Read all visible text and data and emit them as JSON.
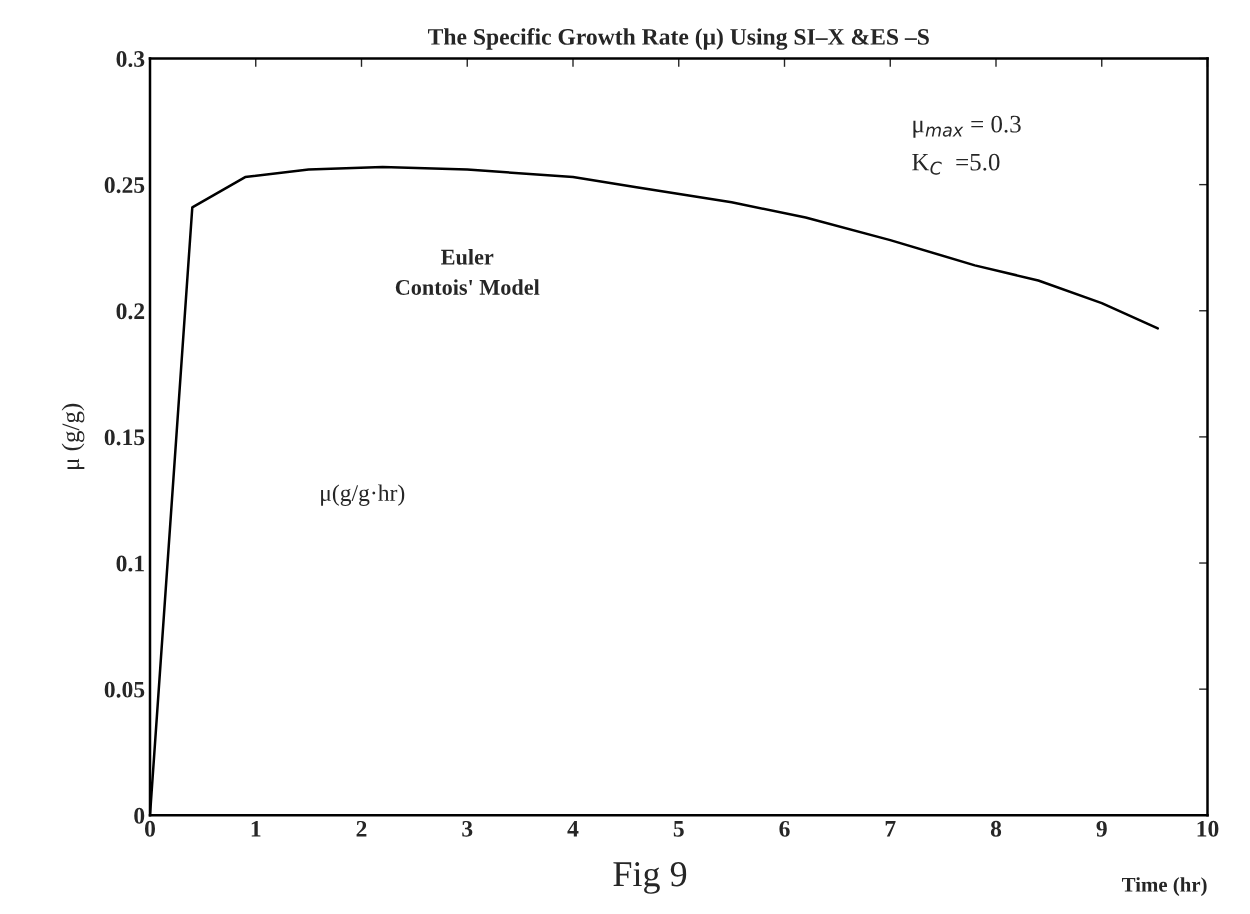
{
  "chart_data": {
    "type": "line",
    "title": "The Specific Growth Rate (μ) Using SI–X &ES –S",
    "xlabel": "Time (hr)",
    "ylabel": "μ (g/g)",
    "x": [
      0,
      0.4,
      0.9,
      1.5,
      2.2,
      3,
      4,
      4.6,
      5.5,
      6.2,
      7,
      7.8,
      8.4,
      9,
      9.53
    ],
    "series": [
      {
        "color": "#000000",
        "values": [
          0,
          0.241,
          0.253,
          0.256,
          0.257,
          0.256,
          0.253,
          0.249,
          0.243,
          0.237,
          0.228,
          0.218,
          0.212,
          0.203,
          0.193
        ]
      }
    ],
    "xlim": [
      0,
      10
    ],
    "ylim": [
      0,
      0.3
    ],
    "xticks": [
      0,
      1,
      2,
      3,
      4,
      5,
      6,
      7,
      8,
      9,
      10
    ],
    "yticks": [
      0,
      0.05,
      0.1,
      0.15,
      0.2,
      0.25,
      0.3
    ],
    "grid": false,
    "legend": false,
    "marker": "none",
    "line_style": "solid",
    "annotations": [
      "Euler",
      "Contois' Model",
      "μ(g/g·hr)",
      "μ$_{max}$ = 0.3",
      "K$_{C}$  =5.0",
      "Fig 9"
    ]
  }
}
